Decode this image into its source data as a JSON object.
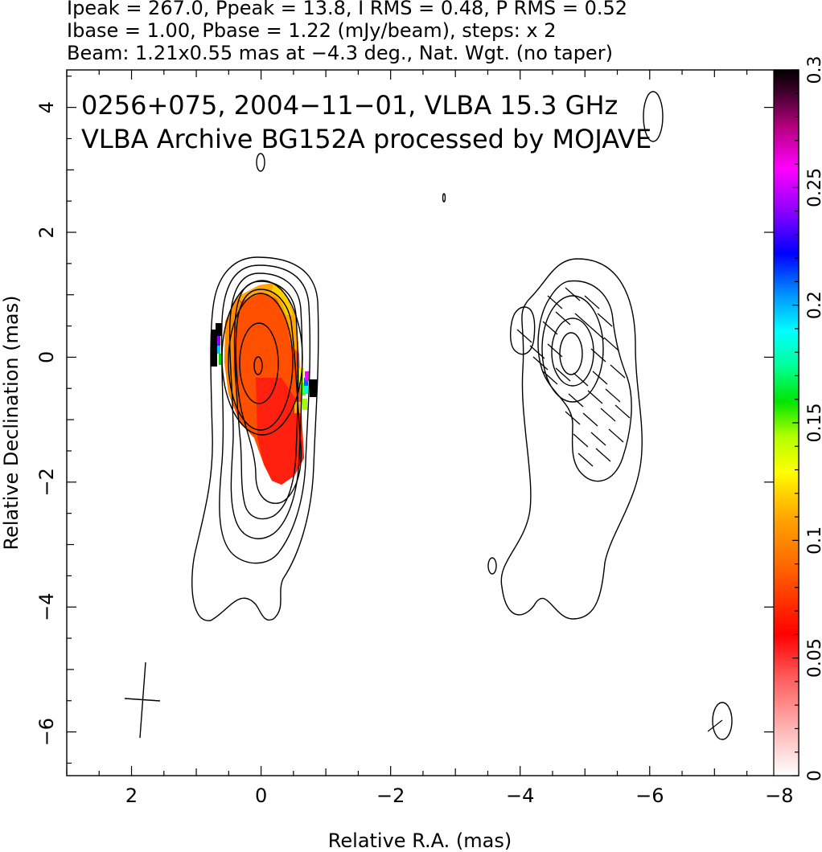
{
  "header": {
    "line1": "Ipeak = 267.0, Ppeak = 13.8, I RMS = 0.48, P RMS = 0.52",
    "line2": "Ibase = 1.00, Pbase = 1.22 (mJy/beam), steps: x 2",
    "line3": "Beam: 1.21x0.55 mas at −4.3 deg., Nat. Wgt. (no taper)"
  },
  "chart_data": {
    "type": "heatmap",
    "title": "0256+075, 2004−11−01, VLBA 15.3 GHz",
    "subtitle": "VLBA Archive BG152A processed by MOJAVE",
    "xlabel": "Relative R.A. (mas)",
    "ylabel": "Relative Declination (mas)",
    "xlim": [
      3,
      -8.3
    ],
    "ylim": [
      -6.7,
      4.6
    ],
    "x_ticks": [
      2,
      0,
      -2,
      -4,
      -6,
      -8
    ],
    "x_tick_labels": [
      "2",
      "0",
      "−2",
      "−4",
      "−6",
      "−8"
    ],
    "y_ticks": [
      4,
      2,
      0,
      -2,
      -4,
      -6
    ],
    "y_tick_labels": [
      "4",
      "2",
      "0",
      "−2",
      "−4",
      "−6"
    ],
    "colorbar": {
      "range": [
        0,
        0.3
      ],
      "ticks": [
        0,
        0.05,
        0.1,
        0.15,
        0.2,
        0.25,
        0.3
      ],
      "tick_labels": [
        "0",
        "0.05",
        "0.1",
        "0.15",
        "0.2",
        "0.25",
        "0.3"
      ]
    },
    "panels": [
      {
        "name": "total intensity with fractional polarization",
        "center": [
          0,
          0
        ],
        "contour_levels_mJy": [
          1,
          2,
          4,
          8,
          16,
          32,
          64,
          128,
          256
        ]
      },
      {
        "name": "polarized intensity with EVPA ticks",
        "center": [
          -5.1,
          0
        ],
        "contour_levels_mJy": [
          1.22,
          2.44,
          4.88,
          9.76
        ]
      }
    ],
    "beam": {
      "major_mas": 1.21,
      "minor_mas": 0.55,
      "pa_deg": -4.3,
      "center": [
        1.85,
        -5.6
      ]
    }
  }
}
